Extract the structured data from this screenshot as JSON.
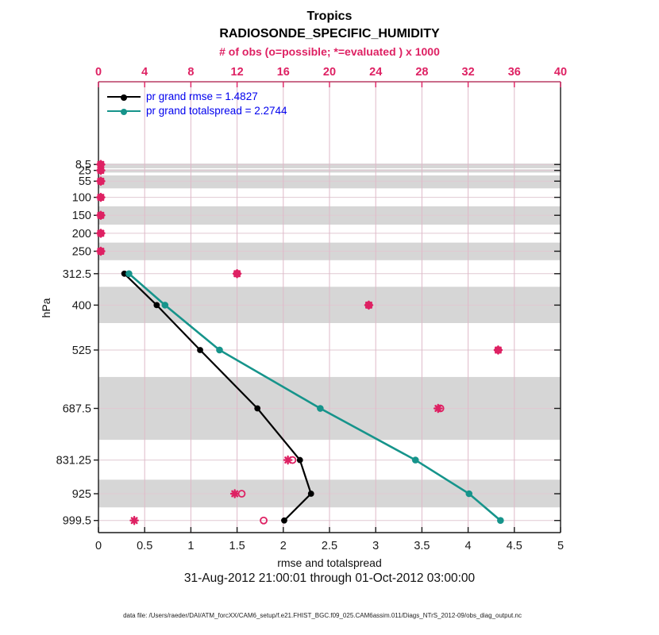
{
  "header": {
    "title": "Tropics",
    "subtitle": "RADIOSONDE_SPECIFIC_HUMIDITY",
    "obs_axis_label": "# of obs (o=possible; *=evaluated ) x 1000"
  },
  "legend": {
    "items": [
      {
        "label": "pr grand rmse = 1.4827",
        "color": "#000000"
      },
      {
        "label": "pr grand totalspread = 2.2744",
        "color": "#16948B"
      }
    ],
    "text_color": "#0000EE"
  },
  "footer": {
    "xlabel": "rmse and totalspread",
    "timespan": "31-Aug-2012 21:00:01 through 01-Oct-2012 03:00:00",
    "datafile": "data file: /Users/raeder/DAI/ATM_forcXX/CAM6_setup/f.e21.FHIST_BGC.f09_025.CAM6assim.011/Diags_NTrS_2012-09/obs_diag_output.nc"
  },
  "colors": {
    "pink": "#DE2163",
    "pink_dark_line": "#B93B63",
    "teal": "#16948B",
    "black": "#000000",
    "legend_blue": "#0000EE",
    "band_gray": "#D6D6D6",
    "grid_vertical": "#DFB9C9",
    "grid_horizontal": "#E0C9D2",
    "axis_dark": "#1a1a1a"
  },
  "chart_data": {
    "type": "line",
    "orientation": "vertical-profile",
    "title": "Tropics",
    "subtitle": "RADIOSONDE_SPECIFIC_HUMIDITY",
    "ylabel": "hPa",
    "top_axis": {
      "label": "# of obs (o=possible; *=evaluated ) x 1000",
      "range": [
        0,
        40
      ],
      "ticks": [
        0,
        4,
        8,
        12,
        16,
        20,
        24,
        28,
        32,
        36,
        40
      ]
    },
    "bottom_axis": {
      "label": "rmse and totalspread",
      "range": [
        0,
        5
      ],
      "ticks": [
        "0",
        "0.5",
        "1",
        "1.5",
        "2",
        "2.5",
        "3",
        "3.5",
        "4",
        "4.5",
        "5"
      ]
    },
    "levels": [
      8.5,
      25,
      55,
      100,
      150,
      200,
      250,
      312.5,
      400,
      525,
      687.5,
      831.25,
      925,
      999.5
    ],
    "level_labels": [
      "8.5",
      "25",
      "55",
      "100",
      "150",
      "200",
      "250",
      "312.5",
      "400",
      "525",
      "687.5",
      "831.25",
      "925",
      "999.5"
    ],
    "shaded_bands_hpa": [
      [
        6,
        19
      ],
      [
        22,
        31
      ],
      [
        39,
        75
      ],
      [
        125,
        176
      ],
      [
        226,
        275
      ],
      [
        349,
        450
      ],
      [
        600,
        775
      ],
      [
        886,
        963
      ]
    ],
    "series": [
      {
        "name": "pr grand rmse = 1.4827",
        "color": "#000000",
        "levels": [
          312.5,
          400,
          525,
          687.5,
          831.25,
          925,
          999.5
        ],
        "values": [
          0.28,
          0.63,
          1.1,
          1.72,
          2.18,
          2.3,
          2.01
        ]
      },
      {
        "name": "pr grand totalspread = 2.2744",
        "color": "#16948B",
        "levels": [
          312.5,
          400,
          525,
          687.5,
          831.25,
          925,
          999.5
        ],
        "values": [
          0.33,
          0.72,
          1.31,
          2.4,
          3.43,
          4.01,
          4.35
        ]
      }
    ],
    "obs_counts_x1000": {
      "levels": [
        8.5,
        25,
        55,
        100,
        150,
        200,
        250,
        312.5,
        400,
        525,
        687.5,
        831.25,
        925,
        999.5
      ],
      "evaluated_asterisk": [
        0.2,
        0.2,
        0.2,
        0.2,
        0.2,
        0.2,
        0.2,
        12.0,
        23.4,
        34.6,
        29.4,
        16.4,
        11.8,
        3.1
      ],
      "possible_circle": [
        0.2,
        0.2,
        0.2,
        0.2,
        0.2,
        0.2,
        0.2,
        12.0,
        23.4,
        34.6,
        29.6,
        16.8,
        12.4,
        14.3
      ]
    },
    "grid": true,
    "legend_position": "top-left-inside"
  }
}
